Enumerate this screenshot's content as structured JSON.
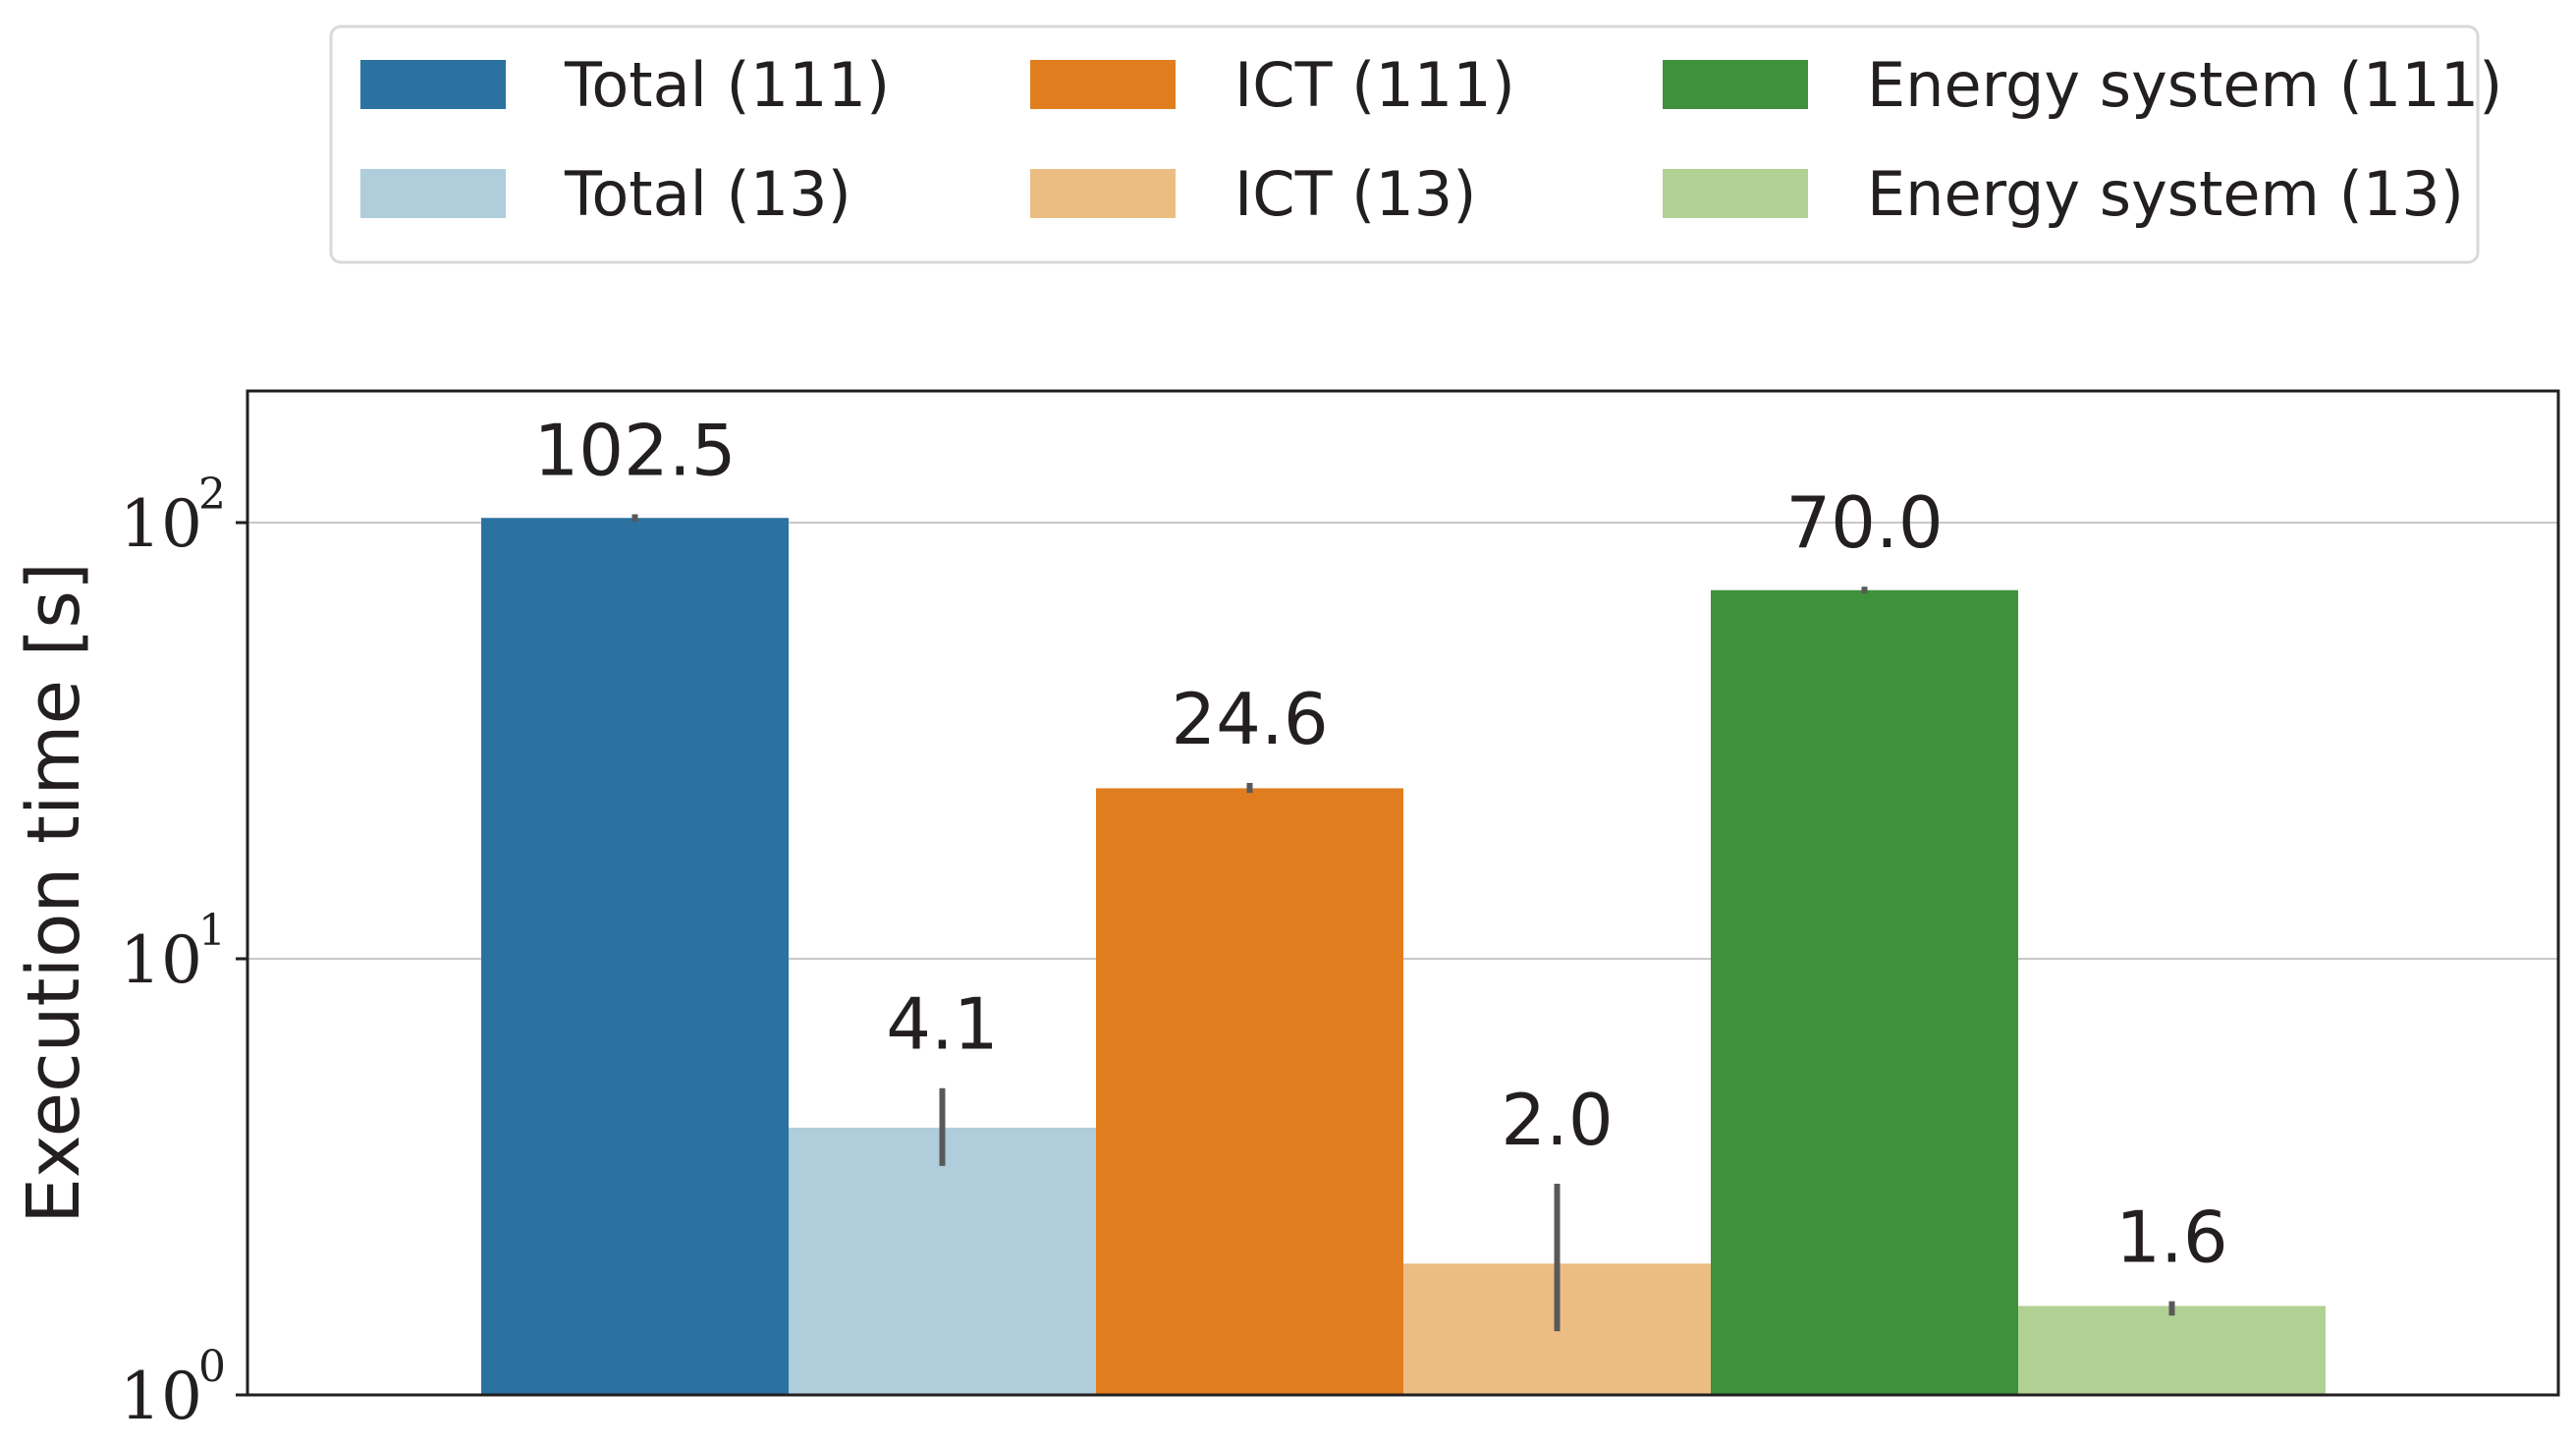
{
  "chart_data": {
    "type": "bar",
    "title": "",
    "xlabel": "",
    "ylabel": "Execution time [s]",
    "yscale": "log",
    "ylim": [
      1,
      200
    ],
    "grid": true,
    "legend_position": "top-center",
    "categories": [
      "Total (111)",
      "Total (13)",
      "ICT (111)",
      "ICT (13)",
      "Energy system (111)",
      "Energy system (13)"
    ],
    "values": [
      102.5,
      4.1,
      24.6,
      2.0,
      70.0,
      1.6
    ],
    "value_labels": [
      "102.5",
      "4.1",
      "24.6",
      "2.0",
      "70.0",
      "1.6"
    ],
    "error_bars": [
      [
        100.5,
        104.5
      ],
      [
        3.35,
        5.05
      ],
      [
        24.0,
        25.3
      ],
      [
        1.4,
        3.05
      ],
      [
        68.8,
        71.3
      ],
      [
        1.52,
        1.64
      ]
    ],
    "colors": [
      "#2b72a0",
      "#afcddb",
      "#e07e1f",
      "#ebbd83",
      "#3f913c",
      "#b1d194"
    ],
    "error_color": "#595959",
    "y_ticks": [
      {
        "value": 1,
        "base": "10",
        "exponent": "0"
      },
      {
        "value": 10,
        "base": "10",
        "exponent": "1"
      },
      {
        "value": 100,
        "base": "10",
        "exponent": "2"
      }
    ],
    "legend": [
      {
        "label": "Total (111)",
        "color": "#2b72a0"
      },
      {
        "label": "ICT (111)",
        "color": "#e07e1f"
      },
      {
        "label": "Energy system (111)",
        "color": "#3f913c"
      },
      {
        "label": "Total (13)",
        "color": "#afcddb"
      },
      {
        "label": "ICT (13)",
        "color": "#ebbd83"
      },
      {
        "label": "Energy system (13)",
        "color": "#b1d194"
      }
    ]
  }
}
